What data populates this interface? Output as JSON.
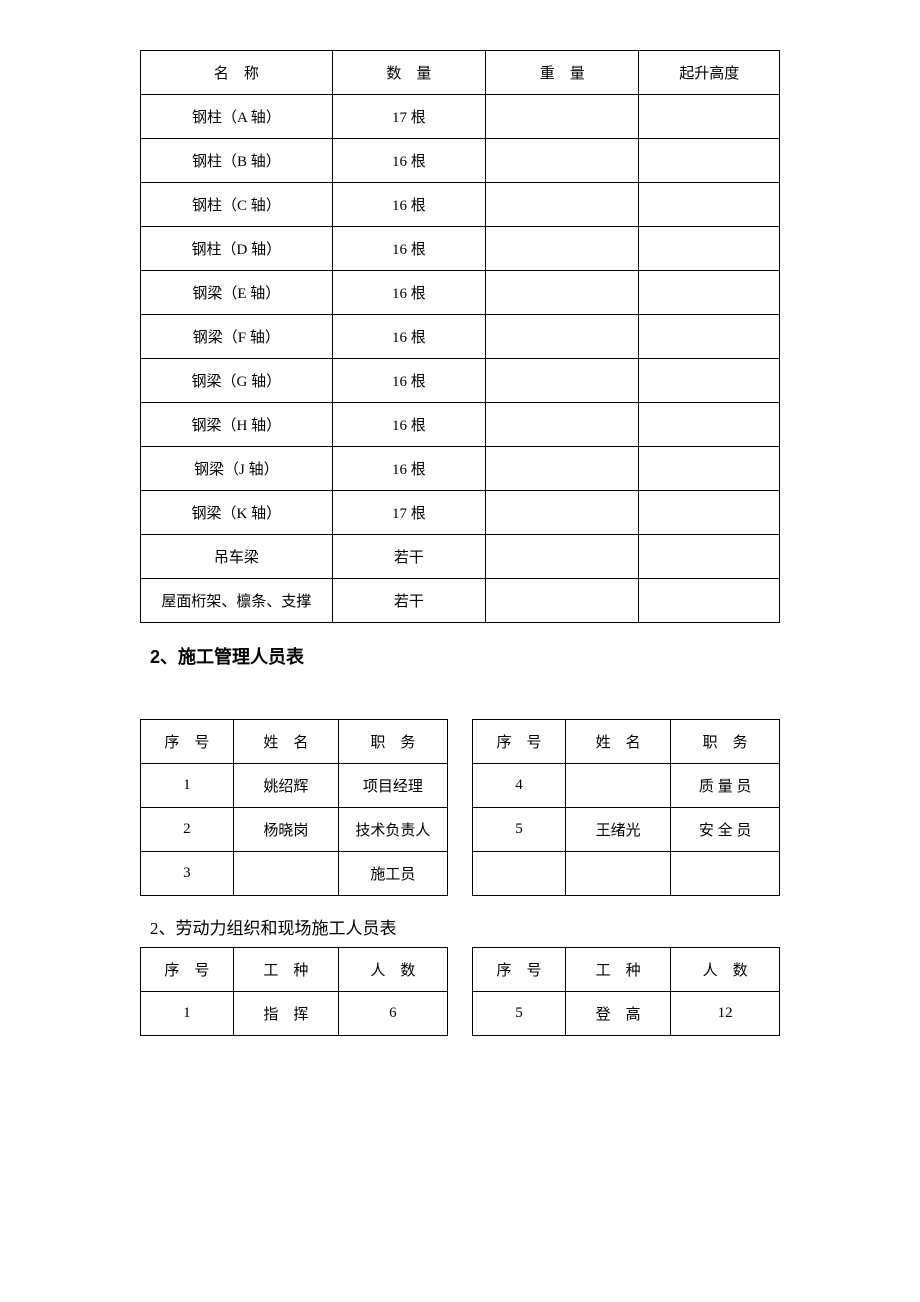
{
  "table1": {
    "headers": [
      "名　称",
      "数　量",
      "重　量",
      "起升高度"
    ],
    "rows": [
      [
        "钢柱（A 轴）",
        "17 根",
        "",
        ""
      ],
      [
        "钢柱（B 轴）",
        "16 根",
        "",
        ""
      ],
      [
        "钢柱（C 轴）",
        "16 根",
        "",
        ""
      ],
      [
        "钢柱（D 轴）",
        "16 根",
        "",
        ""
      ],
      [
        "钢梁（E 轴）",
        "16 根",
        "",
        ""
      ],
      [
        "钢梁（F 轴）",
        "16 根",
        "",
        ""
      ],
      [
        "钢梁（G 轴）",
        "16 根",
        "",
        ""
      ],
      [
        "钢梁（H 轴）",
        "16 根",
        "",
        ""
      ],
      [
        "钢梁（J 轴）",
        "16 根",
        "",
        ""
      ],
      [
        "钢梁（K 轴）",
        "17 根",
        "",
        ""
      ],
      [
        "吊车梁",
        "若干",
        "",
        ""
      ],
      [
        "屋面桁架、檩条、支撑",
        "若干",
        "",
        ""
      ]
    ]
  },
  "heading2": "2、施工管理人员表",
  "table2": {
    "left_headers": [
      "序　号",
      "姓　名",
      "职　务"
    ],
    "right_headers": [
      "序　号",
      "姓　名",
      "职　务"
    ],
    "rows": [
      {
        "left": [
          "1",
          "姚绍辉",
          "项目经理"
        ],
        "right": [
          "4",
          "",
          "质 量 员"
        ]
      },
      {
        "left": [
          "2",
          "杨晓岗",
          "技术负责人"
        ],
        "right": [
          "5",
          "王绪光",
          "安 全 员"
        ]
      },
      {
        "left": [
          "3",
          "",
          "施工员"
        ],
        "right": [
          "",
          "",
          ""
        ]
      }
    ]
  },
  "heading3": "2、劳动力组织和现场施工人员表",
  "table3": {
    "left_headers": [
      "序　号",
      "工　种",
      "人　数"
    ],
    "right_headers": [
      "序　号",
      "工　种",
      "人　数"
    ],
    "rows": [
      {
        "left": [
          "1",
          "指　挥",
          "6"
        ],
        "right": [
          "5",
          "登　高",
          "12"
        ]
      }
    ]
  },
  "colors": {
    "border": "#000000",
    "text": "#000000",
    "background": "#ffffff"
  }
}
